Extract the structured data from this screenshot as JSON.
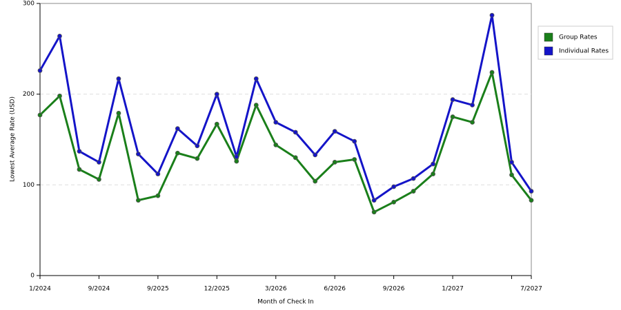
{
  "chart_data": {
    "type": "line",
    "x_label": "Month of Check In",
    "y_label": "Lowest Average Rate (USD)",
    "categories": [
      "1/2024",
      null,
      null,
      "9/2024",
      null,
      null,
      "9/2025",
      null,
      null,
      "12/2025",
      null,
      null,
      "3/2026",
      null,
      null,
      "6/2026",
      null,
      null,
      "9/2026",
      null,
      null,
      "1/2027",
      null,
      null,
      null,
      "7/2027"
    ],
    "series": [
      {
        "name": "Group Rates",
        "color": "#1a7f1a",
        "values": [
          177,
          198,
          117,
          106,
          179,
          83,
          88,
          135,
          129,
          167,
          126,
          188,
          144,
          130,
          104,
          125,
          128,
          70,
          81,
          93,
          112,
          175,
          169,
          224,
          111,
          83
        ]
      },
      {
        "name": "Individual Rates",
        "color": "#1414c8",
        "values": [
          226,
          264,
          137,
          125,
          217,
          134,
          112,
          162,
          143,
          200,
          131,
          217,
          169,
          158,
          133,
          159,
          148,
          83,
          98,
          107,
          123,
          194,
          188,
          287,
          125,
          93
        ]
      }
    ],
    "ylim": [
      0,
      300
    ],
    "yticks": [
      0,
      100,
      200,
      300
    ],
    "grid": true,
    "legend": "right"
  }
}
